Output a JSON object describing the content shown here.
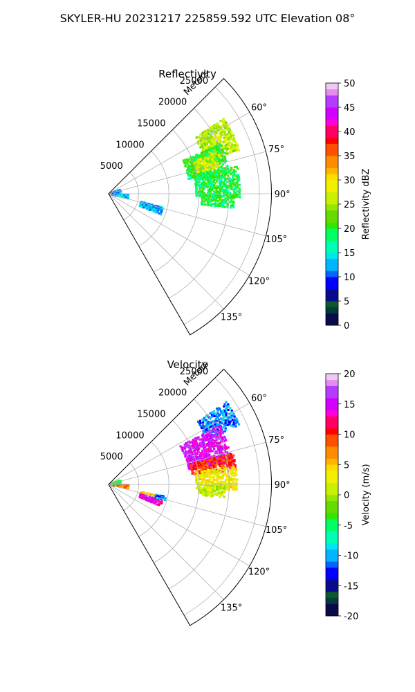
{
  "figure_title": "SKYLER-HU  20231217  225859.592 UTC Elevation 08°",
  "chart_data": [
    {
      "type": "polar-sector",
      "title": "Reflectivity",
      "radial_label": "Meters",
      "radial_ticks": [
        "5000",
        "10000",
        "15000",
        "20000",
        "25000"
      ],
      "radial_tick_values": [
        5000,
        10000,
        15000,
        20000,
        25000
      ],
      "rlim": [
        0,
        27000
      ],
      "theta_range_deg": [
        45,
        150
      ],
      "angle_ticks": [
        "60°",
        "75°",
        "90°",
        "105°",
        "120°",
        "135°"
      ],
      "angle_tick_values": [
        60,
        75,
        90,
        105,
        120,
        135
      ],
      "grid": true,
      "colorbar": {
        "label": "Reflectivity dBZ",
        "range": [
          0,
          50
        ],
        "ticks": [
          "0",
          "5",
          "10",
          "15",
          "20",
          "25",
          "30",
          "35",
          "40",
          "45",
          "50"
        ],
        "tick_values": [
          0,
          5,
          10,
          15,
          20,
          25,
          30,
          35,
          40,
          45,
          50
        ]
      },
      "echo_regions": [
        {
          "theta": [
            57,
            72
          ],
          "r": [
            17000,
            23000
          ],
          "value": 26
        },
        {
          "theta": [
            66,
            80
          ],
          "r": [
            13500,
            20500
          ],
          "value": 20
        },
        {
          "theta": [
            78,
            92
          ],
          "r": [
            14500,
            22000
          ],
          "value": 19
        },
        {
          "theta": [
            91,
            97
          ],
          "r": [
            15500,
            21000
          ],
          "value": 19
        },
        {
          "theta": [
            69,
            77
          ],
          "r": [
            15000,
            19000
          ],
          "value": 27
        },
        {
          "theta": [
            104,
            112
          ],
          "r": [
            5500,
            9500
          ],
          "value": 13
        },
        {
          "theta": [
            92,
            104
          ],
          "r": [
            500,
            3500
          ],
          "value": 13
        },
        {
          "theta": [
            72,
            86
          ],
          "r": [
            300,
            2200
          ],
          "value": 12
        }
      ]
    },
    {
      "type": "polar-sector",
      "title": "Velocity",
      "radial_label": "Meters",
      "radial_ticks": [
        "5000",
        "10000",
        "15000",
        "20000",
        "25000"
      ],
      "radial_tick_values": [
        5000,
        10000,
        15000,
        20000,
        25000
      ],
      "rlim": [
        0,
        27000
      ],
      "theta_range_deg": [
        45,
        150
      ],
      "angle_ticks": [
        "60°",
        "75°",
        "90°",
        "105°",
        "120°",
        "135°"
      ],
      "angle_tick_values": [
        60,
        75,
        90,
        105,
        120,
        135
      ],
      "grid": true,
      "colorbar": {
        "label": "Velocity (m/s)",
        "range": [
          -20,
          20
        ],
        "ticks": [
          "-20",
          "-15",
          "-10",
          "-5",
          "0",
          "5",
          "10",
          "15",
          "20"
        ],
        "tick_values": [
          -20,
          -15,
          -10,
          -5,
          0,
          5,
          10,
          15,
          20
        ]
      },
      "echo_regions": [
        {
          "theta": [
            55,
            66
          ],
          "r": [
            18000,
            24000
          ],
          "value": -11
        },
        {
          "theta": [
            62,
            80
          ],
          "r": [
            13500,
            21000
          ],
          "value": 15
        },
        {
          "theta": [
            76,
            84
          ],
          "r": [
            14000,
            21500
          ],
          "value": 10
        },
        {
          "theta": [
            82,
            93
          ],
          "r": [
            14500,
            21500
          ],
          "value": 3
        },
        {
          "theta": [
            90,
            97
          ],
          "r": [
            15000,
            19500
          ],
          "value": 1
        },
        {
          "theta": [
            103,
            108
          ],
          "r": [
            5500,
            9000
          ],
          "value": 5
        },
        {
          "theta": [
            107,
            113
          ],
          "r": [
            5500,
            9500
          ],
          "value": 14
        },
        {
          "theta": [
            102,
            106
          ],
          "r": [
            8000,
            10000
          ],
          "value": -11
        },
        {
          "theta": [
            92,
            102
          ],
          "r": [
            500,
            3500
          ],
          "value": 8
        },
        {
          "theta": [
            72,
            86
          ],
          "r": [
            300,
            2200
          ],
          "value": -4
        }
      ]
    }
  ]
}
